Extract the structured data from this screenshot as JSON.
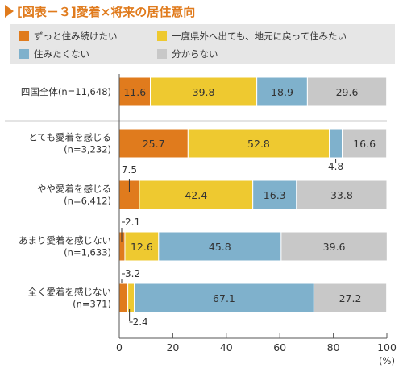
{
  "figure": {
    "title": "[図表－３]愛着×将来の居住意向",
    "title_color": "#e07b1d"
  },
  "chart_data": {
    "type": "bar",
    "orientation": "horizontal",
    "stacked": true,
    "title": "[図表－３]愛着×将来の居住意向",
    "categories": [
      [
        "四国全体(n=11,648)"
      ],
      [
        "とても愛着を感じる",
        "(n=3,232)"
      ],
      [
        "やや愛着を感じる",
        "(n=6,412)"
      ],
      [
        "あまり愛着を感じない",
        "(n=1,633)"
      ],
      [
        "全く愛着を感じない",
        "(n=371)"
      ]
    ],
    "series": [
      {
        "name": "ずっと住み続けたい",
        "color": "#e07b1d",
        "values": [
          11.6,
          25.7,
          7.5,
          2.1,
          3.2
        ]
      },
      {
        "name": "一度県外へ出ても、地元に戻って住みたい",
        "color": "#eec930",
        "values": [
          39.8,
          52.8,
          42.4,
          12.6,
          2.4
        ]
      },
      {
        "name": "住みたくない",
        "color": "#7fb1cc",
        "values": [
          18.9,
          4.8,
          16.3,
          45.8,
          67.1
        ]
      },
      {
        "name": "分からない",
        "color": "#c8c8c8",
        "values": [
          29.6,
          16.6,
          33.8,
          39.6,
          27.2
        ]
      }
    ],
    "xlim": [
      0,
      100
    ],
    "xticks": [
      0,
      20,
      40,
      60,
      80,
      100
    ],
    "xunit": "(%)",
    "legend_position": "top",
    "grid": false
  }
}
